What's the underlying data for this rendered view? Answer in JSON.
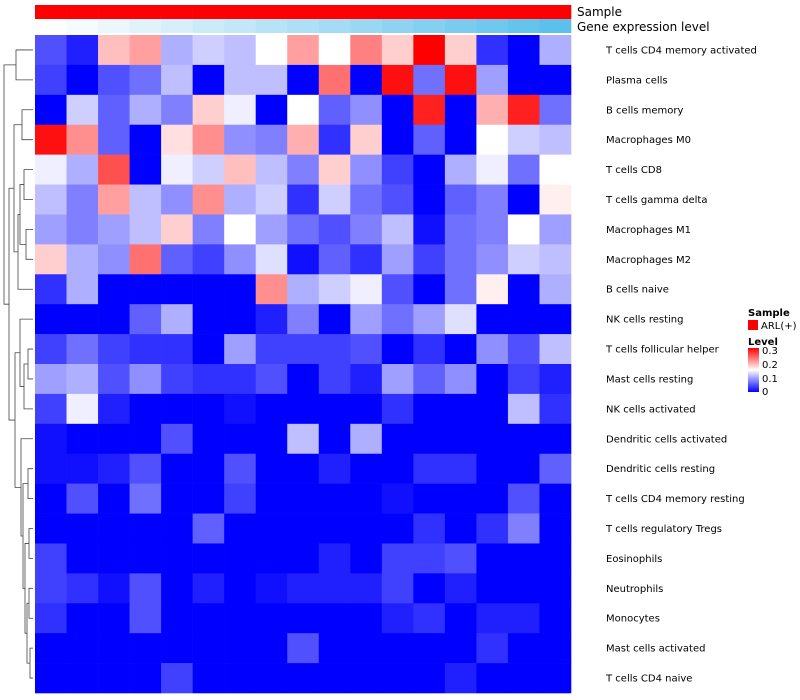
{
  "chart_data": {
    "type": "heatmap",
    "title": "",
    "annotations": [
      {
        "name": "Sample",
        "color_start": "#ff0000",
        "color_end": "#ff0000"
      },
      {
        "name": "Gene expression level",
        "color_start": "#ffffff",
        "color_end": "#5bc0eb"
      }
    ],
    "rows": [
      "T cells CD4 memory activated",
      "Plasma cells",
      "B cells memory",
      "Macrophages M0",
      "T cells CD8",
      "T cells gamma delta",
      "Macrophages M1",
      "Macrophages M2",
      "B cells naive",
      "NK cells resting",
      "T cells follicular helper",
      "Mast cells resting",
      "NK cells activated",
      "Dendritic cells activated",
      "Dendritic cells resting",
      "T cells CD4 memory resting",
      "T cells regulatory  Tregs",
      "Eosinophils",
      "Neutrophils",
      "Monocytes",
      "Mast cells activated",
      "T cells CD4 naive"
    ],
    "n_columns": 17,
    "values": [
      [
        0.05,
        0.02,
        0.2,
        0.22,
        0.11,
        0.13,
        0.12,
        0.16,
        0.22,
        0.16,
        0.24,
        0.19,
        0.32,
        0.19,
        0.03,
        0.0,
        0.11
      ],
      [
        0.04,
        0.0,
        0.05,
        0.07,
        0.12,
        0.0,
        0.12,
        0.12,
        0.0,
        0.25,
        0.0,
        0.31,
        0.07,
        0.31,
        0.1,
        0.0,
        0.0
      ],
      [
        0.0,
        0.13,
        0.06,
        0.11,
        0.08,
        0.19,
        0.15,
        0.0,
        0.16,
        0.06,
        0.09,
        0.0,
        0.3,
        0.0,
        0.21,
        0.3,
        0.07
      ],
      [
        0.31,
        0.23,
        0.06,
        0.0,
        0.18,
        0.23,
        0.09,
        0.08,
        0.21,
        0.03,
        0.19,
        0.0,
        0.06,
        0.0,
        0.16,
        0.13,
        0.12
      ],
      [
        0.15,
        0.11,
        0.27,
        0.0,
        0.15,
        0.13,
        0.2,
        0.12,
        0.08,
        0.19,
        0.09,
        0.04,
        0.0,
        0.11,
        0.15,
        0.07,
        0.16
      ],
      [
        0.12,
        0.08,
        0.22,
        0.12,
        0.09,
        0.23,
        0.11,
        0.13,
        0.03,
        0.13,
        0.07,
        0.05,
        0.0,
        0.06,
        0.08,
        0.0,
        0.17
      ],
      [
        0.1,
        0.08,
        0.1,
        0.12,
        0.19,
        0.08,
        0.16,
        0.1,
        0.07,
        0.05,
        0.08,
        0.12,
        0.01,
        0.07,
        0.08,
        0.16,
        0.1
      ],
      [
        0.19,
        0.11,
        0.09,
        0.25,
        0.06,
        0.04,
        0.09,
        0.14,
        0.01,
        0.06,
        0.03,
        0.1,
        0.04,
        0.07,
        0.09,
        0.13,
        0.12
      ],
      [
        0.03,
        0.11,
        0.0,
        0.0,
        0.0,
        0.0,
        0.0,
        0.23,
        0.11,
        0.13,
        0.15,
        0.05,
        0.0,
        0.07,
        0.17,
        0.0,
        0.11
      ],
      [
        0.0,
        0.0,
        0.0,
        0.06,
        0.11,
        0.0,
        0.0,
        0.02,
        0.08,
        0.0,
        0.1,
        0.07,
        0.1,
        0.14,
        0.0,
        0.0,
        0.0
      ],
      [
        0.04,
        0.07,
        0.04,
        0.03,
        0.03,
        0.0,
        0.1,
        0.04,
        0.04,
        0.04,
        0.05,
        0.0,
        0.03,
        0.0,
        0.09,
        0.05,
        0.12
      ],
      [
        0.1,
        0.11,
        0.05,
        0.09,
        0.04,
        0.03,
        0.03,
        0.05,
        0.0,
        0.04,
        0.02,
        0.1,
        0.06,
        0.09,
        0.0,
        0.04,
        0.02
      ],
      [
        0.04,
        0.15,
        0.02,
        0.0,
        0.0,
        0.0,
        0.01,
        0.0,
        0.0,
        0.0,
        0.0,
        0.03,
        0.0,
        0.0,
        0.0,
        0.12,
        0.03
      ],
      [
        0.01,
        0.0,
        0.0,
        0.0,
        0.05,
        0.0,
        0.0,
        0.0,
        0.12,
        0.0,
        0.11,
        0.0,
        0.0,
        0.0,
        0.0,
        0.0,
        0.0
      ],
      [
        0.01,
        0.01,
        0.02,
        0.05,
        0.0,
        0.0,
        0.05,
        0.0,
        0.0,
        0.02,
        0.0,
        0.0,
        0.03,
        0.03,
        0.0,
        0.0,
        0.06
      ],
      [
        0.0,
        0.05,
        0.0,
        0.07,
        0.0,
        0.0,
        0.04,
        0.0,
        0.0,
        0.0,
        0.0,
        0.01,
        0.0,
        0.0,
        0.0,
        0.05,
        0.0
      ],
      [
        0.0,
        0.0,
        0.0,
        0.0,
        0.0,
        0.06,
        0.0,
        0.0,
        0.0,
        0.0,
        0.0,
        0.0,
        0.03,
        0.0,
        0.03,
        0.08,
        0.0
      ],
      [
        0.04,
        0.0,
        0.0,
        0.0,
        0.0,
        0.0,
        0.0,
        0.0,
        0.0,
        0.02,
        0.0,
        0.04,
        0.04,
        0.05,
        0.0,
        0.0,
        0.0
      ],
      [
        0.04,
        0.03,
        0.01,
        0.05,
        0.0,
        0.02,
        0.0,
        0.01,
        0.02,
        0.02,
        0.02,
        0.04,
        0.0,
        0.02,
        0.0,
        0.0,
        0.0
      ],
      [
        0.03,
        0.0,
        0.0,
        0.05,
        0.0,
        0.0,
        0.0,
        0.0,
        0.0,
        0.0,
        0.0,
        0.02,
        0.03,
        0.0,
        0.02,
        0.02,
        0.0
      ],
      [
        0.0,
        0.0,
        0.0,
        0.0,
        0.0,
        0.0,
        0.0,
        0.0,
        0.05,
        0.0,
        0.0,
        0.0,
        0.0,
        0.0,
        0.03,
        0.0,
        0.0
      ],
      [
        0.0,
        0.0,
        0.0,
        0.0,
        0.04,
        0.0,
        0.0,
        0.0,
        0.0,
        0.0,
        0.0,
        0.0,
        0.0,
        0.02,
        0.0,
        0.0,
        0.0
      ]
    ],
    "color_scale": {
      "low": "#0000ff",
      "mid": "#ffffff",
      "high": "#ff0000",
      "min": 0,
      "mid_value": 0.16,
      "max": 0.32
    },
    "legends": [
      {
        "title": "Sample",
        "entries": [
          {
            "label": "ARL(+)",
            "color": "#ff0000"
          }
        ]
      },
      {
        "title": "Level",
        "ticks": [
          "0.3",
          "0.2",
          "0.1",
          "0"
        ]
      }
    ],
    "dendrogram": "row"
  }
}
